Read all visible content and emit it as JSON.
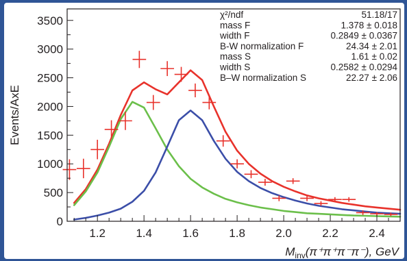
{
  "chart_data": {
    "type": "scatter",
    "title": "",
    "xlabel_parts": {
      "main": "M",
      "sub": "inv",
      "rest": "(π⁺π⁺π⁻π⁻), GeV"
    },
    "ylabel": "Events/AxE",
    "xlim": [
      1.07,
      2.5
    ],
    "ylim": [
      0,
      3700
    ],
    "x_ticks": [
      1.2,
      1.4,
      1.6,
      1.8,
      2.0,
      2.2,
      2.4
    ],
    "x_tick_labels": [
      "1.2",
      "1.4",
      "1.6",
      "1.8",
      "2.0",
      "2.2",
      "2.4"
    ],
    "y_ticks": [
      0,
      500,
      1000,
      1500,
      2000,
      2500,
      3000,
      3500
    ],
    "y_tick_labels": [
      "0",
      "500",
      "1000",
      "1500",
      "2000",
      "2500",
      "3000",
      "3500"
    ],
    "data_points": {
      "name": "",
      "color": "#e8322b",
      "x_half_width": 0.029,
      "x": [
        1.08,
        1.14,
        1.2,
        1.26,
        1.32,
        1.38,
        1.44,
        1.5,
        1.56,
        1.62,
        1.68,
        1.74,
        1.8,
        1.86,
        1.92,
        1.98,
        2.04,
        2.1,
        2.16,
        2.22,
        2.28,
        2.34,
        2.4,
        2.46
      ],
      "y": [
        900,
        920,
        1250,
        1600,
        1750,
        2820,
        2070,
        2660,
        2560,
        2280,
        2070,
        1400,
        1000,
        820,
        680,
        400,
        700,
        400,
        310,
        380,
        380,
        150,
        130,
        120
      ],
      "yerr": [
        180,
        170,
        170,
        160,
        160,
        150,
        130,
        130,
        130,
        120,
        120,
        100,
        80,
        70,
        60,
        50,
        50,
        50,
        40,
        40,
        40,
        40,
        30,
        30
      ]
    },
    "series": [
      {
        "name": "",
        "kind": "total-fit",
        "color": "#e8322b",
        "x": [
          1.1,
          1.15,
          1.2,
          1.25,
          1.3,
          1.35,
          1.4,
          1.45,
          1.5,
          1.55,
          1.6,
          1.65,
          1.7,
          1.75,
          1.8,
          1.85,
          1.9,
          1.95,
          2.0,
          2.05,
          2.1,
          2.15,
          2.2,
          2.25,
          2.3,
          2.35,
          2.4,
          2.45,
          2.5
        ],
        "values": [
          320,
          560,
          900,
          1350,
          1850,
          2280,
          2420,
          2300,
          2210,
          2420,
          2630,
          2460,
          2000,
          1560,
          1230,
          1000,
          830,
          700,
          600,
          520,
          450,
          400,
          360,
          320,
          290,
          260,
          240,
          220,
          200
        ]
      },
      {
        "name": "",
        "kind": "component-F",
        "color": "#6bbf4a",
        "x": [
          1.1,
          1.15,
          1.2,
          1.25,
          1.3,
          1.35,
          1.4,
          1.45,
          1.5,
          1.55,
          1.6,
          1.65,
          1.7,
          1.75,
          1.8,
          1.85,
          1.9,
          1.95,
          2.0,
          2.05,
          2.1,
          2.15,
          2.2,
          2.25,
          2.3,
          2.35,
          2.4,
          2.45,
          2.5
        ],
        "values": [
          280,
          520,
          850,
          1300,
          1780,
          2080,
          1980,
          1620,
          1250,
          960,
          740,
          590,
          480,
          390,
          330,
          280,
          240,
          210,
          180,
          160,
          140,
          130,
          120,
          110,
          100,
          95,
          90,
          85,
          80
        ]
      },
      {
        "name": "",
        "kind": "component-S",
        "color": "#3b4ea8",
        "x": [
          1.1,
          1.15,
          1.2,
          1.25,
          1.3,
          1.35,
          1.4,
          1.45,
          1.5,
          1.55,
          1.6,
          1.65,
          1.7,
          1.75,
          1.8,
          1.85,
          1.9,
          1.95,
          2.0,
          2.05,
          2.1,
          2.15,
          2.2,
          2.25,
          2.3,
          2.35,
          2.4,
          2.45,
          2.5
        ],
        "values": [
          30,
          60,
          100,
          150,
          220,
          340,
          530,
          850,
          1300,
          1760,
          1930,
          1760,
          1400,
          1090,
          860,
          700,
          580,
          490,
          420,
          360,
          310,
          270,
          240,
          210,
          190,
          170,
          150,
          140,
          130
        ]
      }
    ],
    "legend_placement": "none",
    "grid": false
  },
  "stats_box": {
    "placement": "top-right",
    "rows": [
      {
        "label": "χ²/ndf",
        "value": "51.18/17"
      },
      {
        "label": "mass F",
        "value": "1.378 ± 0.018"
      },
      {
        "label": "width F",
        "value": "0.2849 ± 0.0367"
      },
      {
        "label": "B-W normalization F",
        "value": "24.34 ± 2.01"
      },
      {
        "label": "mass S",
        "value": "1.61 ± 0.02"
      },
      {
        "label": "width S",
        "value": "0.2582 ± 0.0294"
      },
      {
        "label": "B–W normalization S",
        "value": "22.27 ± 2.06"
      }
    ]
  },
  "colors": {
    "background": "#2f5596",
    "axis": "#231f20"
  }
}
